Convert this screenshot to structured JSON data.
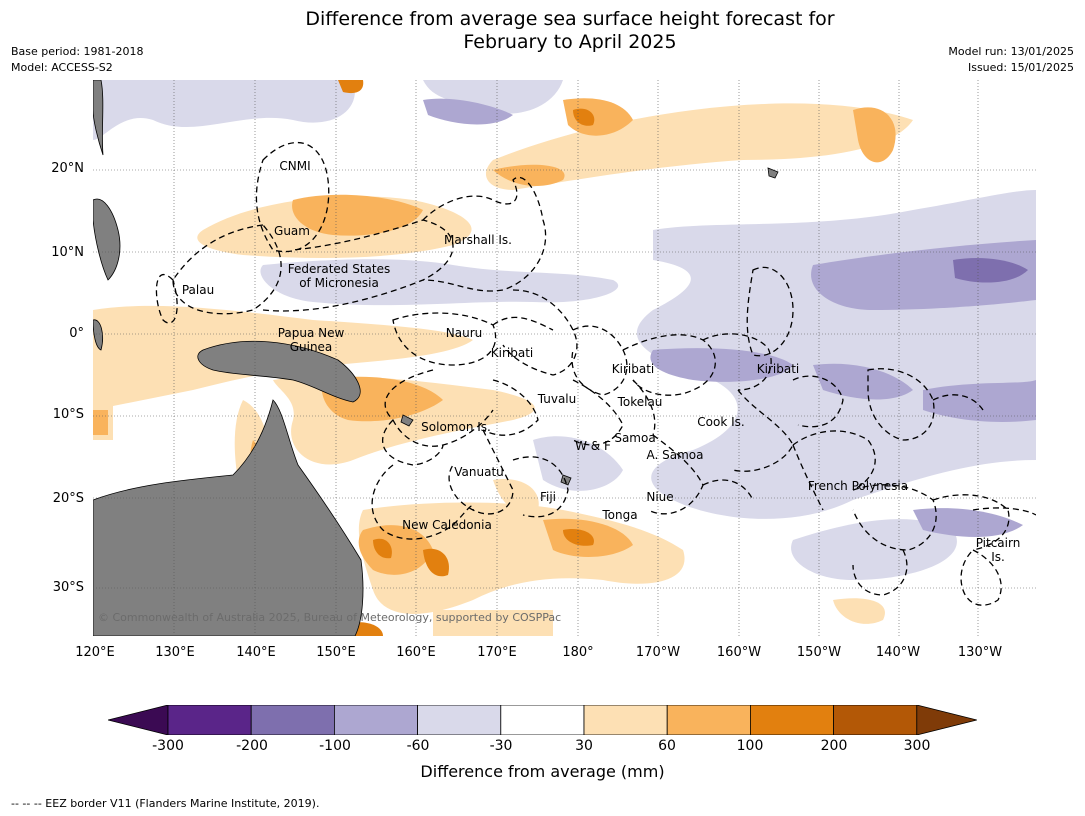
{
  "title_line1": "Difference from average sea surface height forecast for",
  "title_line2": "February to April 2025",
  "meta_left": [
    "Base period: 1981-2018",
    "Model: ACCESS-S2"
  ],
  "meta_right": [
    "Model run: 13/01/2025",
    "Issued: 15/01/2025"
  ],
  "lat_labels": [
    "20°N",
    "10°N",
    "0°",
    "10°S",
    "20°S",
    "30°S"
  ],
  "lon_labels": [
    "120°E",
    "130°E",
    "140°E",
    "150°E",
    "160°E",
    "170°E",
    "180°",
    "170°W",
    "160°W",
    "150°W",
    "140°W",
    "130°W"
  ],
  "places": {
    "cnmi": "CNMI",
    "guam": "Guam",
    "marshall": "Marshall Is.",
    "fsm1": "Federated States",
    "fsm2": "of Micronesia",
    "palau": "Palau",
    "png1": "Papua New",
    "png2": "Guinea",
    "nauru": "Nauru",
    "kiribati_w": "Kiribati",
    "kiribati_c": "Kiribati",
    "kiribati_e": "Kiribati",
    "tuvalu": "Tuvalu",
    "tokelau": "Tokelau",
    "cook": "Cook Is.",
    "solomon": "Solomon Is.",
    "samoa": "Samoa",
    "wf": "W & F",
    "asamoa": "A. Samoa",
    "vanuatu": "Vanuatu",
    "fiji": "Fiji",
    "niue": "Niue",
    "tonga": "Tonga",
    "newcal": "New Caledonia",
    "frpoly": "French Polynesia",
    "pitcairn1": "Pitcairn",
    "pitcairn2": "Is."
  },
  "copyright": "© Commonwealth of Australia 2025, Bureau of Meteorology, supported by COSPPac",
  "colorbar": {
    "title": "Difference from average (mm)",
    "ticks": [
      "-300",
      "-200",
      "-100",
      "-60",
      "-30",
      "30",
      "60",
      "100",
      "200",
      "300"
    ],
    "colors": [
      "#3b0a53",
      "#5a2589",
      "#7e6fae",
      "#ada7d1",
      "#d9d9ea",
      "#ffffff",
      "#fde0b4",
      "#f9b35c",
      "#e2800f",
      "#b35806",
      "#7f3b08"
    ]
  },
  "footer": "--  --  -- EEZ border V11 (Flanders Marine Institute, 2019)."
}
